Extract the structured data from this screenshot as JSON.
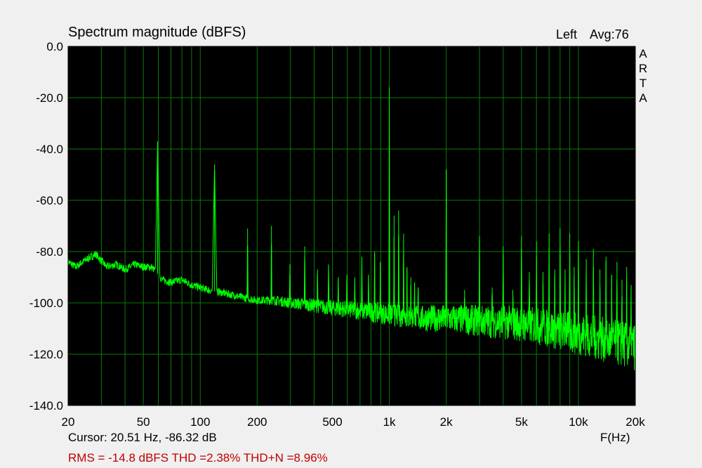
{
  "window": {
    "title": "Spectrum magnitude (dBFS)",
    "channel": "Left",
    "averaging": "Avg:76",
    "brand_letters": [
      "A",
      "R",
      "T",
      "A"
    ]
  },
  "readouts": {
    "cursor": "Cursor: 20.51 Hz, -86.32 dB",
    "x_unit": "F(Hz)",
    "stats": "RMS =  -14.8 dBFS  THD =2.38%  THD+N =8.96%"
  },
  "colors": {
    "background": "#f0f0f0",
    "plot_background": "#000000",
    "grid": "#0a7a0a",
    "trace": "#00ff00",
    "stats_text": "#c00000"
  },
  "chart_data": {
    "type": "line",
    "title": "Spectrum magnitude (dBFS)",
    "xlabel": "F(Hz)",
    "ylabel": "",
    "x_scale": "log",
    "xlim": [
      20,
      20000
    ],
    "ylim": [
      -140,
      0
    ],
    "grid": true,
    "yticks": [
      0,
      -20,
      -40,
      -60,
      -80,
      -100,
      -120,
      -140
    ],
    "ytick_labels": [
      "0.0",
      "-20.0",
      "-40.0",
      "-60.0",
      "-80.0",
      "-100.0",
      "-120.0",
      "-140.0"
    ],
    "xticks": [
      20,
      50,
      100,
      200,
      500,
      1000,
      2000,
      5000,
      10000,
      20000
    ],
    "xtick_labels": [
      "20",
      "50",
      "100",
      "200",
      "500",
      "1k",
      "2k",
      "5k",
      "10k",
      "20k"
    ],
    "noise_floor": {
      "x": [
        20,
        22,
        25,
        28,
        32,
        36,
        40,
        45,
        50,
        55,
        57,
        63,
        70,
        80,
        90,
        100,
        110,
        130,
        150,
        170,
        200,
        250,
        300,
        400,
        500,
        700,
        900,
        1100,
        1500,
        2000,
        3000,
        5000,
        7000,
        10000,
        15000,
        20000
      ],
      "y": [
        -84,
        -86,
        -83,
        -81,
        -86,
        -85,
        -87,
        -85,
        -86,
        -86,
        -87,
        -91,
        -92,
        -91,
        -93,
        -94,
        -95,
        -96,
        -97,
        -98,
        -99,
        -99,
        -100,
        -101,
        -102,
        -103,
        -104,
        -105,
        -106,
        -106,
        -107,
        -108,
        -110,
        -112,
        -115,
        -117
      ]
    },
    "peaks": {
      "x": [
        59.5,
        119,
        178,
        238,
        298,
        357,
        417,
        477,
        537,
        596,
        657,
        716,
        776,
        836,
        896,
        1000,
        1060,
        1120,
        1190,
        1240,
        1300,
        1360,
        1420,
        2000,
        2500,
        3000,
        3500,
        4000,
        4500,
        5000,
        5500,
        6000,
        6500,
        7000,
        7500,
        8000,
        8500,
        9000,
        9500,
        10000,
        11000,
        12000,
        13000,
        14000,
        15000,
        16000,
        17000,
        18000,
        19000
      ],
      "y": [
        -37,
        -46,
        -71,
        -70,
        -85,
        -78,
        -87,
        -85,
        -90,
        -89,
        -90,
        -82,
        -89,
        -80,
        -84,
        -16,
        -66,
        -64,
        -73,
        -86,
        -90,
        -92,
        -94,
        -48,
        -95,
        -74,
        -94,
        -78,
        -95,
        -74,
        -88,
        -76,
        -88,
        -73,
        -87,
        -71,
        -87,
        -73,
        -86,
        -76,
        -83,
        -79,
        -87,
        -82,
        -89,
        -84,
        -91,
        -86,
        -93
      ]
    }
  }
}
